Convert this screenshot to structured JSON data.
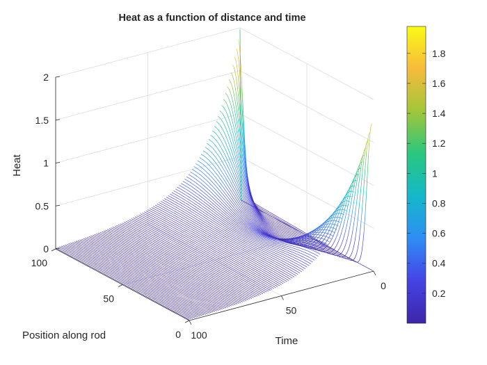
{
  "chart_data": {
    "type": "surface-mesh",
    "title": "Heat as a function of distance and time",
    "xlabel": "Time",
    "ylabel": "Position along rod",
    "zlabel": "Heat",
    "x_ticks": [
      "0",
      "50",
      "100"
    ],
    "y_ticks": [
      "0",
      "50",
      "100"
    ],
    "z_ticks": [
      "0",
      "0.5",
      "1",
      "1.5",
      "2"
    ],
    "xlim": [
      0,
      100
    ],
    "ylim": [
      0,
      100
    ],
    "zlim": [
      0,
      2
    ],
    "colorbar": {
      "ticks": [
        "0.2",
        "0.4",
        "0.6",
        "0.8",
        "1",
        "1.2",
        "1.4",
        "1.6",
        "1.8"
      ],
      "range": [
        0,
        1.98
      ],
      "colormap": "parula",
      "colors": [
        "#3e26a8",
        "#4543e6",
        "#2f8df5",
        "#14b8c9",
        "#2ac77e",
        "#a1c63a",
        "#f7ba3c",
        "#f9fb15"
      ]
    },
    "peaks": [
      {
        "time": 0,
        "position": 100,
        "heat": 1.98
      },
      {
        "time": 0,
        "position": 0,
        "heat": 1.9
      }
    ],
    "grid": true
  }
}
